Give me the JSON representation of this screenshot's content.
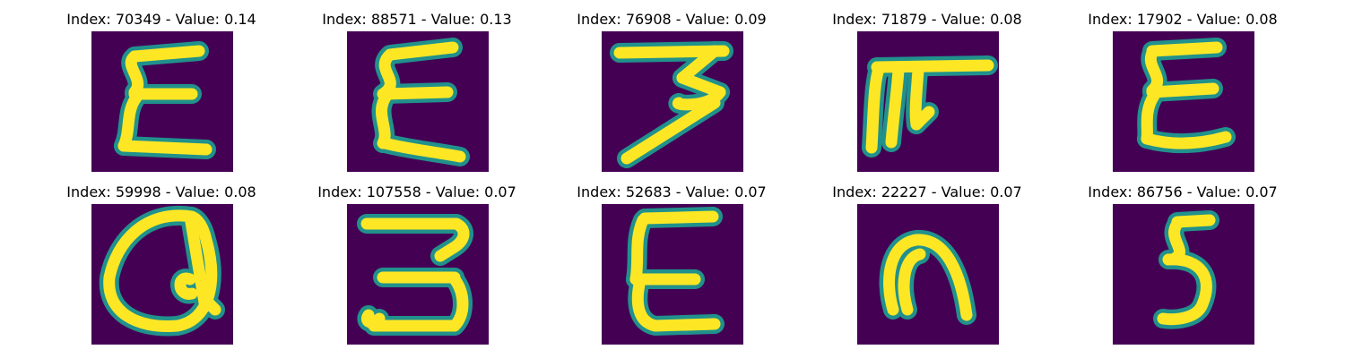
{
  "figure": {
    "colors": {
      "background": "#440154",
      "mid": "#21918c",
      "stroke": "#fde725"
    },
    "panels": [
      {
        "title": "Index: 70349 - Value: 0.14",
        "glyph": "E",
        "paths": [
          "M120 22 L48 28",
          "M46 30 C38 40 60 55 48 68",
          "M48 70 L112 70",
          "M50 74 C38 90 44 110 36 128",
          "M36 128 L128 132"
        ]
      },
      {
        "title": "Index: 88571 - Value: 0.13",
        "glyph": "E",
        "paths": [
          "M118 18 L48 26",
          "M46 28 C32 44 62 56 40 70",
          "M42 70 L112 68",
          "M44 72 C30 92 48 110 40 125",
          "M42 125 C70 132 100 135 126 140"
        ]
      },
      {
        "title": "Index: 76908 - Value: 0.09",
        "glyph": "3",
        "paths": [
          "M20 24 L136 22",
          "M126 22 L90 52",
          "M90 52 L132 68",
          "M132 68 C120 86 80 82 86 80",
          "M126 80 L28 142"
        ]
      },
      {
        "title": "Index: 71879 - Value: 0.08",
        "glyph": "F",
        "paths": [
          "M22 40 L146 38",
          "M24 42 C18 60 18 100 16 130",
          "M46 44 C44 70 40 100 38 124",
          "M68 44 C66 70 64 90 66 104",
          "M66 104 L80 90"
        ]
      },
      {
        "title": "Index: 17902 - Value: 0.08",
        "glyph": "E",
        "paths": [
          "M116 18 L44 22",
          "M44 24 C36 40 60 52 44 66",
          "M44 68 L112 64",
          "M46 72 C34 90 40 110 38 120",
          "M38 120 C60 126 90 128 126 118"
        ]
      },
      {
        "title": "Index: 59998 - Value: 0.08",
        "glyph": "Q",
        "paths": [
          "M112 14 C60 6 28 42 20 82 C16 120 50 140 96 136 C130 130 142 90 128 40 C124 22 116 14 110 14",
          "M110 14 L126 110",
          "M110 84 C94 78 96 104 112 100",
          "M128 108 L138 118"
        ]
      },
      {
        "title": "Index: 107558 - Value: 0.07",
        "glyph": "3",
        "paths": [
          "M22 22 L122 22 C134 28 132 40 120 48 L104 58",
          "M40 82 L120 82",
          "M120 84 C132 100 132 124 120 136 L30 136",
          "M24 124 C18 132 30 136 36 128"
        ]
      },
      {
        "title": "Index: 52683 - Value: 0.07",
        "glyph": "E",
        "paths": [
          "M124 14 L48 16",
          "M46 18 C36 40 42 62 38 84",
          "M38 84 L104 84",
          "M42 90 C38 110 40 132 60 136",
          "M60 136 L126 134"
        ]
      },
      {
        "title": "Index: 22227 - Value: 0.07",
        "glyph": "n",
        "paths": [
          "M40 118 C30 84 36 44 66 40 C100 38 116 80 122 124",
          "M56 118 C48 90 52 60 70 56"
        ]
      },
      {
        "title": "Index: 86756 - Value: 0.07",
        "glyph": "5",
        "paths": [
          "M108 18 L72 20",
          "M72 22 C60 38 84 52 70 60",
          "M62 62 C100 60 112 84 100 112 C94 128 70 130 56 128"
        ]
      }
    ]
  }
}
